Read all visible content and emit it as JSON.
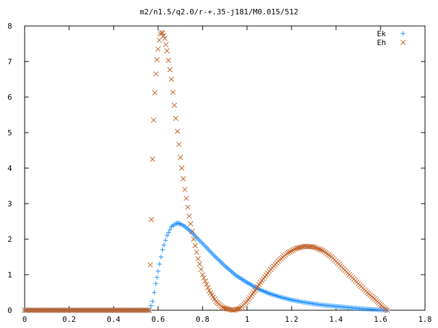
{
  "chart_data": {
    "type": "scatter",
    "title": "m2/n1.5/q2.0/r-+.35-j181/M0.015/512",
    "xlabel": "",
    "ylabel": "",
    "xlim": [
      0,
      1.8
    ],
    "ylim": [
      0,
      8
    ],
    "xticks": [
      "0",
      "0.2",
      "0.4",
      "0.6",
      "0.8",
      "1",
      "1.2",
      "1.4",
      "1.6",
      "1.8"
    ],
    "yticks": [
      "0",
      "1",
      "2",
      "3",
      "4",
      "5",
      "6",
      "7",
      "8"
    ],
    "grid": false,
    "legend_position": "top-right",
    "series": [
      {
        "name": "Ek",
        "marker": "+",
        "color": "#1e90ff",
        "points": [
          [
            0.0,
            0.0
          ],
          [
            0.1,
            0.0
          ],
          [
            0.2,
            0.0
          ],
          [
            0.3,
            0.0
          ],
          [
            0.4,
            0.0
          ],
          [
            0.5,
            0.0
          ],
          [
            0.56,
            0.0
          ],
          [
            0.575,
            0.25
          ],
          [
            0.59,
            0.75
          ],
          [
            0.6,
            1.1
          ],
          [
            0.62,
            1.7
          ],
          [
            0.64,
            2.1
          ],
          [
            0.66,
            2.35
          ],
          [
            0.68,
            2.44
          ],
          [
            0.69,
            2.45
          ],
          [
            0.7,
            2.43
          ],
          [
            0.72,
            2.36
          ],
          [
            0.75,
            2.2
          ],
          [
            0.78,
            2.0
          ],
          [
            0.8,
            1.88
          ],
          [
            0.85,
            1.55
          ],
          [
            0.9,
            1.25
          ],
          [
            0.95,
            0.98
          ],
          [
            1.0,
            0.78
          ],
          [
            1.05,
            0.6
          ],
          [
            1.1,
            0.47
          ],
          [
            1.15,
            0.37
          ],
          [
            1.2,
            0.29
          ],
          [
            1.25,
            0.23
          ],
          [
            1.3,
            0.18
          ],
          [
            1.35,
            0.14
          ],
          [
            1.4,
            0.11
          ],
          [
            1.45,
            0.08
          ],
          [
            1.5,
            0.05
          ],
          [
            1.55,
            0.03
          ],
          [
            1.6,
            0.01
          ],
          [
            1.63,
            0.0
          ]
        ]
      },
      {
        "name": "Eh",
        "marker": "x",
        "color": "#c0622a",
        "points": [
          [
            0.0,
            0.0
          ],
          [
            0.1,
            0.0
          ],
          [
            0.2,
            0.0
          ],
          [
            0.3,
            0.0
          ],
          [
            0.4,
            0.0
          ],
          [
            0.5,
            0.0
          ],
          [
            0.56,
            0.0
          ],
          [
            0.57,
            2.55
          ],
          [
            0.575,
            4.25
          ],
          [
            0.58,
            5.35
          ],
          [
            0.585,
            6.12
          ],
          [
            0.59,
            6.65
          ],
          [
            0.595,
            7.05
          ],
          [
            0.6,
            7.35
          ],
          [
            0.605,
            7.6
          ],
          [
            0.61,
            7.78
          ],
          [
            0.615,
            7.82
          ],
          [
            0.62,
            7.8
          ],
          [
            0.63,
            7.65
          ],
          [
            0.64,
            7.3
          ],
          [
            0.66,
            6.5
          ],
          [
            0.68,
            5.4
          ],
          [
            0.7,
            4.3
          ],
          [
            0.72,
            3.4
          ],
          [
            0.74,
            2.65
          ],
          [
            0.76,
            2.0
          ],
          [
            0.78,
            1.45
          ],
          [
            0.8,
            1.0
          ],
          [
            0.83,
            0.55
          ],
          [
            0.86,
            0.25
          ],
          [
            0.89,
            0.08
          ],
          [
            0.92,
            0.02
          ],
          [
            0.94,
            0.0
          ],
          [
            0.97,
            0.06
          ],
          [
            1.0,
            0.25
          ],
          [
            1.03,
            0.5
          ],
          [
            1.06,
            0.78
          ],
          [
            1.1,
            1.1
          ],
          [
            1.14,
            1.38
          ],
          [
            1.18,
            1.6
          ],
          [
            1.22,
            1.74
          ],
          [
            1.26,
            1.8
          ],
          [
            1.3,
            1.78
          ],
          [
            1.34,
            1.68
          ],
          [
            1.38,
            1.5
          ],
          [
            1.42,
            1.25
          ],
          [
            1.46,
            1.0
          ],
          [
            1.5,
            0.75
          ],
          [
            1.54,
            0.5
          ],
          [
            1.58,
            0.28
          ],
          [
            1.61,
            0.1
          ],
          [
            1.63,
            0.0
          ]
        ]
      }
    ]
  }
}
